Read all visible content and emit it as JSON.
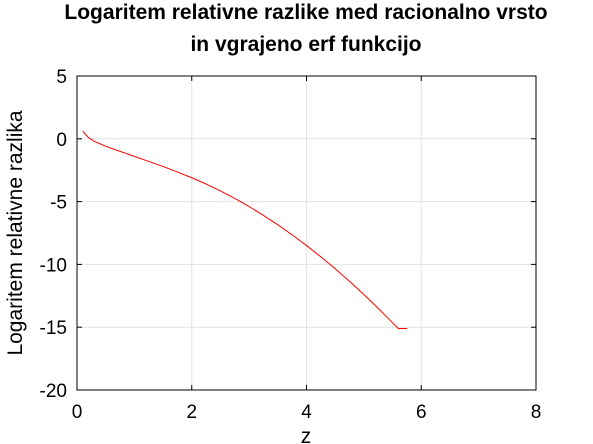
{
  "chart_data": {
    "type": "line",
    "title_lines": [
      "Logaritem relativne razlike med racionalno vrsto",
      "in vgrajeno erf funkcijo"
    ],
    "xlabel": "z",
    "ylabel": "Logaritem relativne razlika",
    "xlim": [
      0,
      8
    ],
    "ylim": [
      -20,
      5
    ],
    "xticks": [
      0,
      2,
      4,
      6,
      8
    ],
    "yticks": [
      5,
      0,
      -5,
      -10,
      -15,
      -20
    ],
    "xtick_labels": [
      "0",
      "2",
      "4",
      "6",
      "8"
    ],
    "ytick_labels": [
      "5",
      "0",
      "-5",
      "-10",
      "-15",
      "-20"
    ],
    "grid": true,
    "series": [
      {
        "color": "#ff0000",
        "x": [
          0.1,
          0.2,
          0.3,
          0.5,
          0.75,
          1.0,
          1.25,
          1.5,
          1.75,
          2.0,
          2.25,
          2.5,
          2.75,
          3.0,
          3.25,
          3.5,
          3.75,
          4.0,
          4.25,
          4.5,
          4.75,
          5.0,
          5.25,
          5.5,
          5.6,
          5.7,
          5.75
        ],
        "y": [
          0.6,
          0.1,
          -0.2,
          -0.6,
          -1.0,
          -1.4,
          -1.8,
          -2.2,
          -2.65,
          -3.1,
          -3.6,
          -4.15,
          -4.75,
          -5.4,
          -6.1,
          -6.85,
          -7.65,
          -8.5,
          -9.4,
          -10.35,
          -11.35,
          -12.4,
          -13.5,
          -14.65,
          -15.1,
          -15.1,
          -15.1
        ]
      }
    ]
  }
}
